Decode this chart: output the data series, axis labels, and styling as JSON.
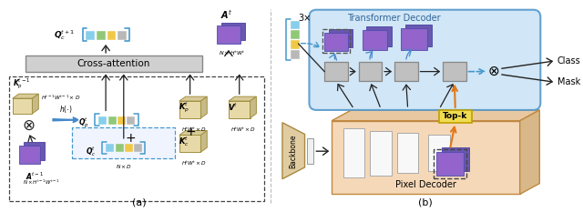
{
  "fig_width": 6.4,
  "fig_height": 2.33,
  "dpi": 100,
  "bg_color": "#ffffff",
  "caption_a": "(a)",
  "caption_b": "(b)",
  "cross_attention_text": "Cross-attention",
  "transformer_decoder_text": "Transformer Decoder",
  "pixel_decoder_text": "Pixel Decoder",
  "backbone_text": "Backbone",
  "topk_text": "Top-k",
  "class_text": "Class",
  "mask_text": "Mask",
  "times3_text": "3×",
  "label_Qct1": "$\\boldsymbol{Q}_c^{t+1}$",
  "label_At": "$\\boldsymbol{A}^t$",
  "label_NHW": "$N\\times H^tW^t$",
  "label_Kpt1": "$\\boldsymbol{K}_p^{t-1}$",
  "label_Ht1Wt1D": "$H^{t-1}W^{t-1}\\times D$",
  "label_hcdot": "$h(\\cdot)$",
  "label_Qpt": "$\\boldsymbol{Q}_p^t$",
  "label_At1": "$\\boldsymbol{A}^{t-1}$",
  "label_NHt1Wt1": "$N\\times H^{t-1}W^{t-1}$",
  "label_Qct": "$\\boldsymbol{Q}_c^t$",
  "label_NxD": "$N\\times D$",
  "label_Kpt": "$\\boldsymbol{K}_p^t$",
  "label_Vt": "$\\boldsymbol{V}^t$",
  "label_HtWtD": "$H^tW^t\\times D$",
  "label_Kct": "$\\boldsymbol{K}_c^t$",
  "label_HtWtD2": "$H^tW^t\\times D$",
  "colors": {
    "blue_sq": "#87ceeb",
    "green_sq": "#90c878",
    "yellow_sq": "#f0c848",
    "gray_sq": "#b8b8b8",
    "dashed_box_dark": "#444444",
    "dashed_box_light": "#888888",
    "cross_attn_bg": "#d0d0d0",
    "cross_attn_border": "#888888",
    "transformer_bg": "#cce4f5",
    "transformer_border": "#5599cc",
    "pixel_decoder_bg": "#f5d8b8",
    "pixel_decoder_top": "#e8c8a0",
    "pixel_decoder_right": "#d8b888",
    "pixel_decoder_border": "#c08840",
    "backbone_fill": "#e0cca0",
    "backbone_border": "#aa8840",
    "gray_box_fill": "#c0c0c0",
    "gray_box_border": "#888888",
    "matrix_fill": "#e8daa8",
    "matrix_top": "#d8ca98",
    "matrix_right": "#c8ba88",
    "matrix_border": "#a09040",
    "topk_fill": "#f0dc50",
    "topk_border": "#c0a000",
    "arrow_color": "#222222",
    "blue_arrow": "#4488cc",
    "orange_arrow": "#e07818",
    "dashed_blue": "#4499cc",
    "white_rect": "#f8f8f8",
    "white_rect_border": "#aaaaaa",
    "feat_back": "#6858b0",
    "feat_front": "#8868c8",
    "feat_border_back": "#4840a0",
    "feat_border_front": "#5848b0"
  }
}
